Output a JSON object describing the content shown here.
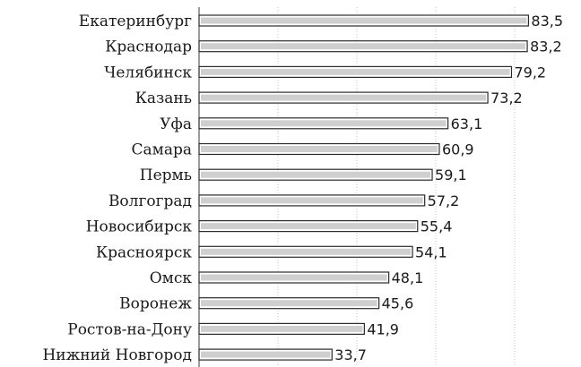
{
  "chart_data": {
    "type": "bar",
    "orientation": "horizontal",
    "categories": [
      "Екатеринбург",
      "Краснодар",
      "Челябинск",
      "Казань",
      "Уфа",
      "Самара",
      "Пермь",
      "Волгоград",
      "Новосибирск",
      "Красноярск",
      "Омск",
      "Воронеж",
      "Ростов-на-Дону",
      "Нижний Новгород"
    ],
    "values": [
      83.5,
      83.2,
      79.2,
      73.2,
      63.1,
      60.9,
      59.1,
      57.2,
      55.4,
      54.1,
      48.1,
      45.6,
      41.9,
      33.7
    ],
    "value_labels": [
      "83,5",
      "83,2",
      "79,2",
      "73,2",
      "63,1",
      "60,9",
      "59,1",
      "57,2",
      "55,4",
      "54,1",
      "48,1",
      "45,6",
      "41,9",
      "33,7"
    ],
    "title": "",
    "xlabel": "",
    "ylabel": "",
    "xlim": [
      0,
      100
    ],
    "grid": true,
    "legend": "none",
    "colors": {
      "bar_fill": "#cfcfcf",
      "bar_outline": "#2a2a2a",
      "grid": "#b8b8b8"
    }
  }
}
